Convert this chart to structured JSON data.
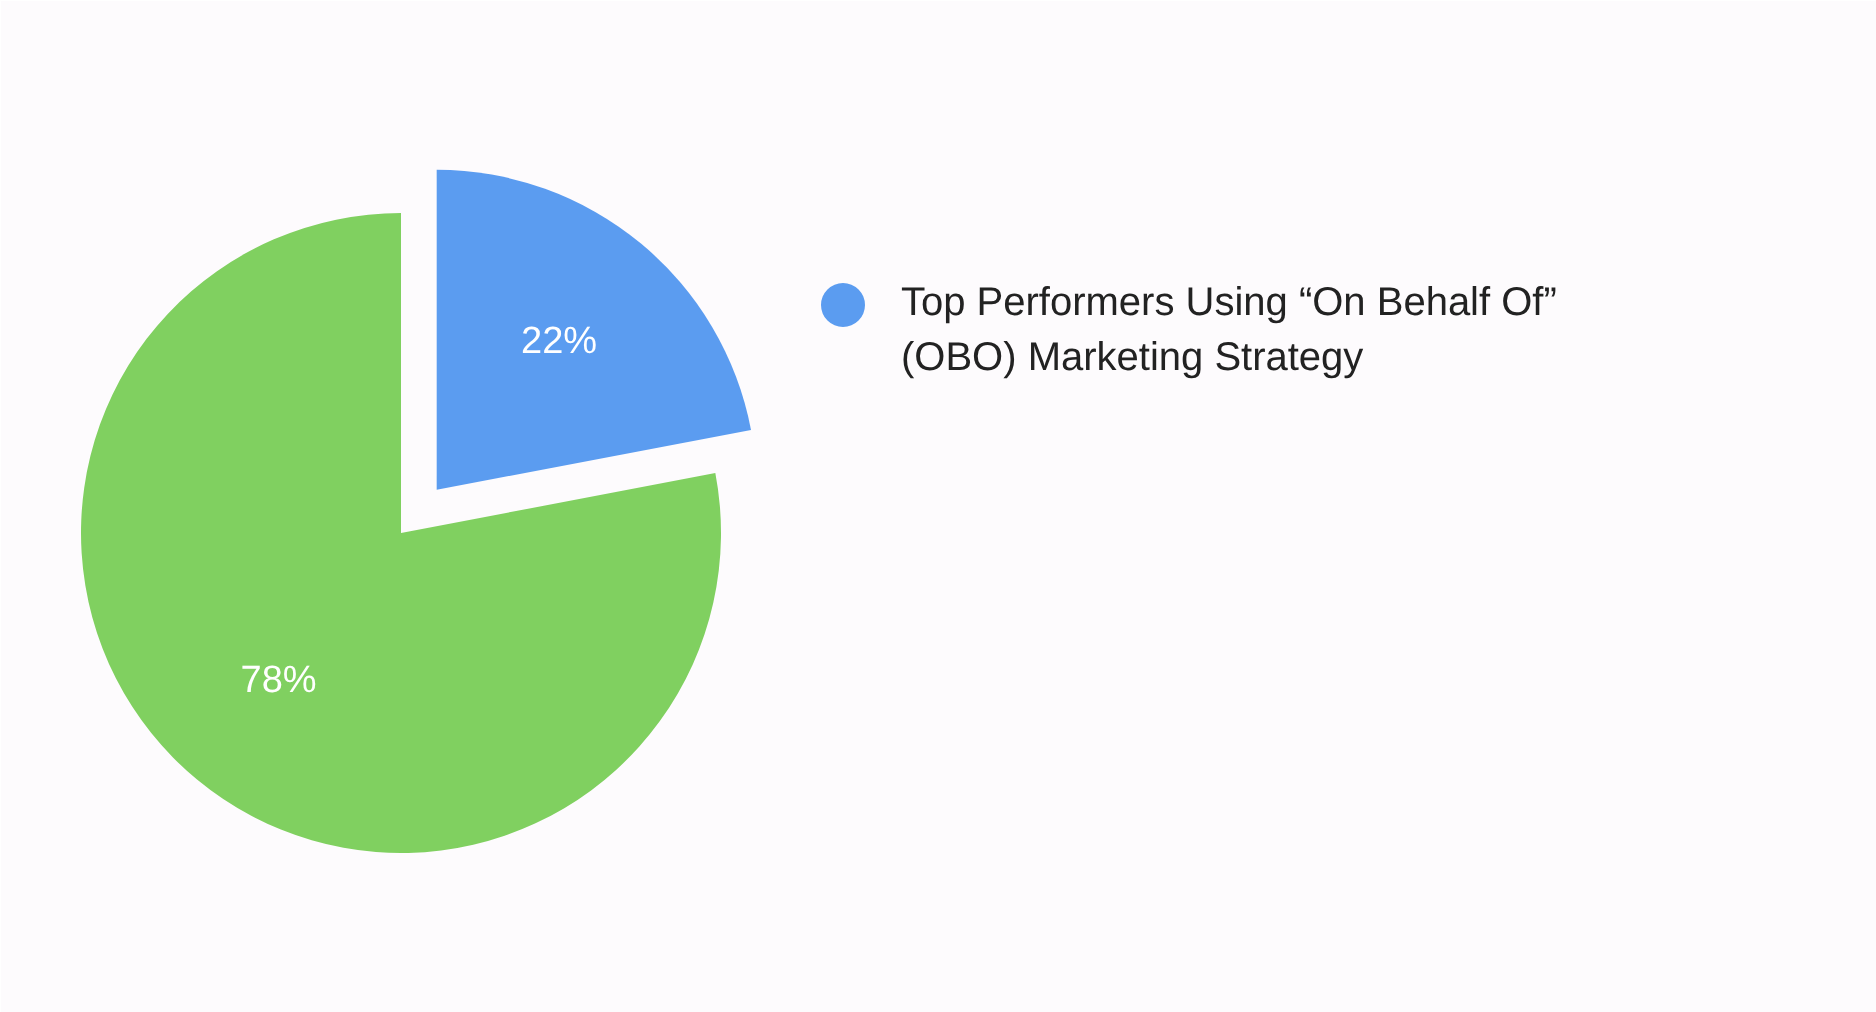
{
  "chart_data": {
    "type": "pie",
    "categories": [
      "Top Performers Using “On Behalf Of” (OBO) Marketing Strategy",
      null
    ],
    "values": [
      22,
      78
    ],
    "colors": [
      "#5b9cf0",
      "#80d060"
    ],
    "value_labels": [
      "22%",
      "78%"
    ],
    "legend": "right"
  }
}
